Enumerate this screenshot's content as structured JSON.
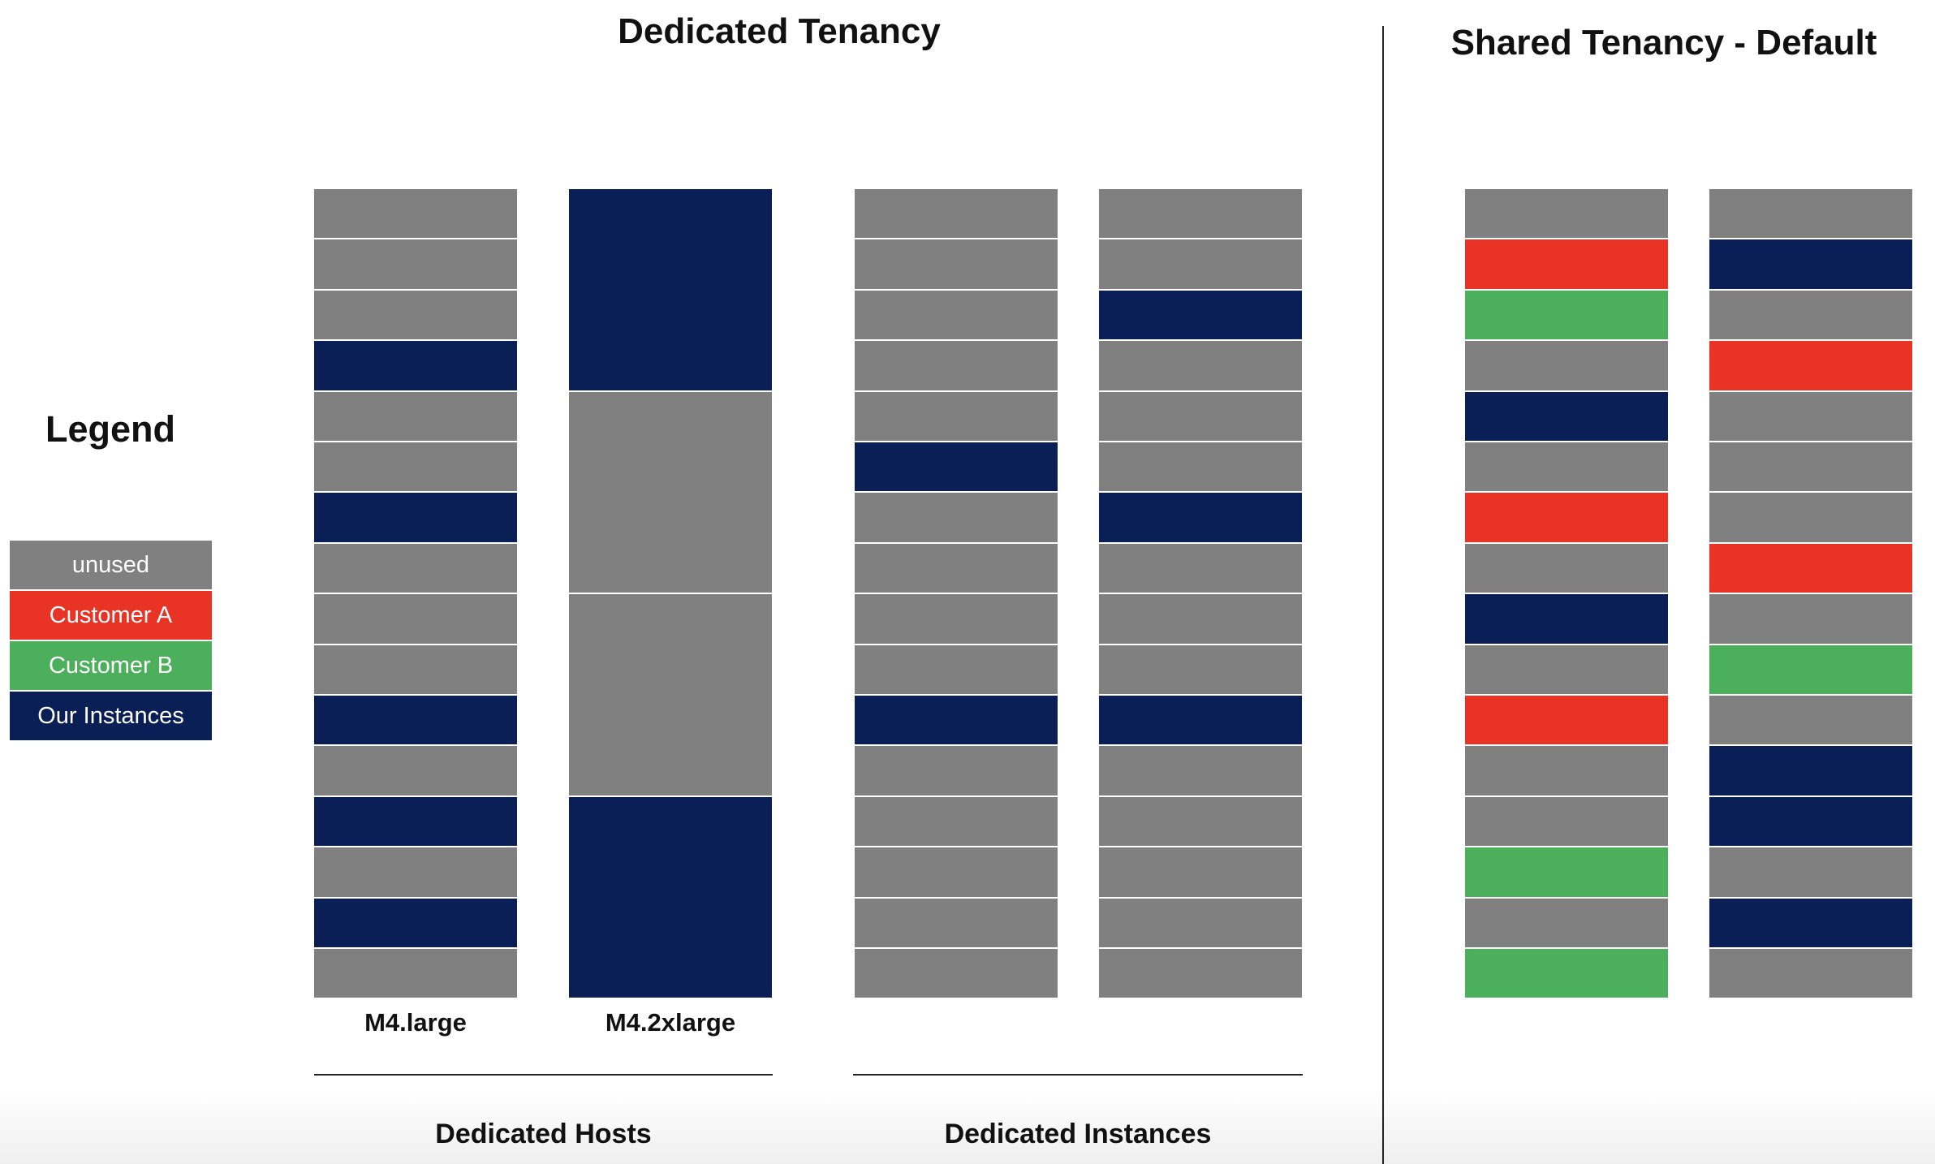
{
  "titles": {
    "dedicated": "Dedicated Tenancy",
    "shared": "Shared Tenancy - Default",
    "legend": "Legend"
  },
  "colors": {
    "unused": "#808080",
    "customer_a": "#e83325",
    "customer_b": "#4caf5b",
    "ours": "#0b1f57"
  },
  "legend": [
    {
      "key": "unused",
      "label": "unused"
    },
    {
      "key": "customer_a",
      "label": "Customer A"
    },
    {
      "key": "customer_b",
      "label": "Customer B"
    },
    {
      "key": "ours",
      "label": "Our Instances"
    }
  ],
  "column_labels": {
    "m4_large": "M4.large",
    "m4_2xlarge": "M4.2xlarge"
  },
  "group_labels": {
    "hosts": "Dedicated Hosts",
    "instances": "Dedicated Instances"
  },
  "columns": [
    {
      "id": "m4-large",
      "slots": [
        "unused",
        "unused",
        "unused",
        "ours",
        "unused",
        "unused",
        "ours",
        "unused",
        "unused",
        "unused",
        "ours",
        "unused",
        "ours",
        "unused",
        "ours",
        "unused"
      ]
    },
    {
      "id": "m4-2xlarge",
      "slot_span": 4,
      "slots": [
        "ours",
        "unused",
        "unused",
        "ours"
      ]
    },
    {
      "id": "dedicated-instances-1",
      "slots": [
        "unused",
        "unused",
        "unused",
        "unused",
        "unused",
        "ours",
        "unused",
        "unused",
        "unused",
        "unused",
        "ours",
        "unused",
        "unused",
        "unused",
        "unused",
        "unused"
      ]
    },
    {
      "id": "dedicated-instances-2",
      "slots": [
        "unused",
        "unused",
        "ours",
        "unused",
        "unused",
        "unused",
        "ours",
        "unused",
        "unused",
        "unused",
        "ours",
        "unused",
        "unused",
        "unused",
        "unused",
        "unused"
      ]
    },
    {
      "id": "shared-1",
      "slots": [
        "unused",
        "customer_a",
        "customer_b",
        "unused",
        "ours",
        "unused",
        "customer_a",
        "unused",
        "ours",
        "unused",
        "customer_a",
        "unused",
        "unused",
        "customer_b",
        "unused",
        "customer_b"
      ]
    },
    {
      "id": "shared-2",
      "slots": [
        "unused",
        "ours",
        "unused",
        "customer_a",
        "unused",
        "unused",
        "unused",
        "customer_a",
        "unused",
        "customer_b",
        "unused",
        "ours",
        "ours",
        "unused",
        "ours",
        "unused"
      ]
    }
  ]
}
